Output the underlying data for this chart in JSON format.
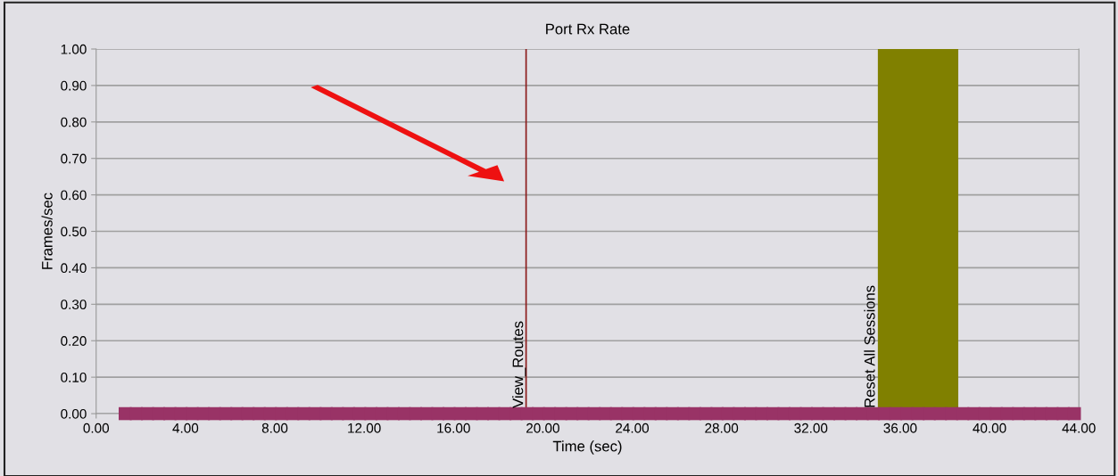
{
  "chart_data": {
    "type": "scatter",
    "title": "Port Rx Rate",
    "xlabel": "Time (sec)",
    "ylabel": "Frames/sec",
    "x": [
      1.3,
      1.8,
      2.3,
      2.8,
      3.3,
      3.8,
      4.3,
      4.8,
      5.3,
      5.8,
      6.3,
      6.8,
      7.3,
      7.8,
      8.3,
      8.8,
      9.3,
      9.8,
      10.3,
      10.8,
      11.3,
      11.8,
      12.3,
      12.8,
      13.3,
      13.8,
      14.3,
      14.8,
      15.3,
      15.8,
      16.3,
      16.8,
      17.3,
      17.8,
      18.3,
      18.8,
      19.3,
      19.8,
      20.3,
      20.8,
      21.3,
      21.8,
      22.3,
      22.8,
      23.3,
      23.8,
      24.3,
      24.8,
      25.3,
      25.8,
      26.3,
      26.8,
      27.3,
      27.8,
      28.3,
      28.8,
      29.3,
      29.8,
      30.3,
      30.8,
      31.3,
      31.8,
      32.3,
      32.8,
      33.3,
      33.8,
      34.3,
      34.8,
      35.3,
      35.8,
      36.3,
      36.8,
      37.3,
      37.8,
      38.3,
      38.8,
      39.3,
      39.8,
      40.3,
      40.8,
      41.3,
      41.8,
      42.3,
      42.8,
      43.3,
      43.8
    ],
    "series": [
      {
        "color": "#993366",
        "values": [
          0,
          0,
          0,
          0,
          0,
          0,
          0,
          0,
          0,
          0,
          0,
          0,
          0,
          0,
          0,
          0,
          0,
          0,
          0,
          0,
          0,
          0,
          0,
          0,
          0,
          0,
          0,
          0,
          0,
          0,
          0,
          0,
          0,
          0,
          0,
          0,
          0,
          0,
          0,
          0,
          0,
          0,
          0,
          0,
          0,
          0,
          0,
          0,
          0,
          0,
          0,
          0,
          0,
          0,
          0,
          0,
          0,
          0,
          0,
          0,
          0,
          0,
          0,
          0,
          0,
          0,
          0,
          0,
          0,
          0,
          0,
          0,
          0,
          0,
          0,
          0,
          0,
          0,
          0,
          0,
          0,
          0,
          0,
          0,
          0,
          0
        ]
      }
    ],
    "marker": "square",
    "xlim": [
      0,
      44
    ],
    "xticks": [
      {
        "value": 0,
        "label": "0.00"
      },
      {
        "value": 4,
        "label": "4.00"
      },
      {
        "value": 8,
        "label": "8.00"
      },
      {
        "value": 12,
        "label": "12.00"
      },
      {
        "value": 16,
        "label": "16.00"
      },
      {
        "value": 20,
        "label": "20.00"
      },
      {
        "value": 24,
        "label": "24.00"
      },
      {
        "value": 28,
        "label": "28.00"
      },
      {
        "value": 32,
        "label": "32.00"
      },
      {
        "value": 36,
        "label": "36.00"
      },
      {
        "value": 40,
        "label": "40.00"
      },
      {
        "value": 44,
        "label": "44.00"
      }
    ],
    "ylim": [
      0,
      1
    ],
    "yticks": [
      {
        "value": 0,
        "label": "0.00"
      },
      {
        "value": 0.1,
        "label": "0.10"
      },
      {
        "value": 0.2,
        "label": "0.20"
      },
      {
        "value": 0.3,
        "label": "0.30"
      },
      {
        "value": 0.4,
        "label": "0.40"
      },
      {
        "value": 0.5,
        "label": "0.50"
      },
      {
        "value": 0.6,
        "label": "0.60"
      },
      {
        "value": 0.7,
        "label": "0.70"
      },
      {
        "value": 0.8,
        "label": "0.80"
      },
      {
        "value": 0.9,
        "label": "0.90"
      },
      {
        "value": 1,
        "label": "1.00"
      }
    ],
    "ref_lines": [
      {
        "axis": "x",
        "value": 19.25,
        "label": "View_Routes",
        "color": "#8b1a1a"
      }
    ],
    "bands": [
      {
        "axis": "x",
        "from": 35.0,
        "to": 38.6,
        "label": "Reset All Sessions",
        "color": "#808000"
      }
    ],
    "grid": "y"
  }
}
